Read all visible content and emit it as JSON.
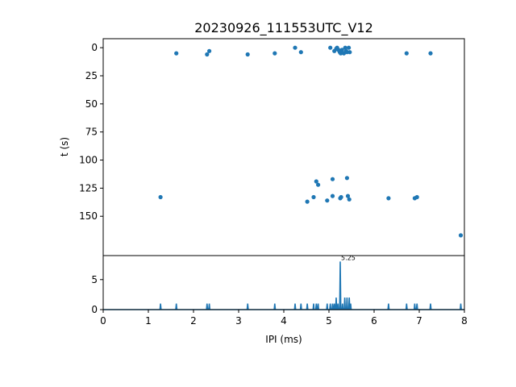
{
  "chart_data": [
    {
      "type": "scatter",
      "title": "20230926_111553UTC_V12",
      "xlabel": "",
      "ylabel": "t (s)",
      "xlim": [
        0,
        8
      ],
      "ylim": [
        185,
        -8
      ],
      "y_inverted": true,
      "yticks": [
        0,
        25,
        50,
        75,
        100,
        125,
        150
      ],
      "color": "#1f77b4",
      "points": [
        {
          "x": 1.62,
          "y": 5
        },
        {
          "x": 2.3,
          "y": 6
        },
        {
          "x": 2.35,
          "y": 3
        },
        {
          "x": 3.2,
          "y": 6
        },
        {
          "x": 3.8,
          "y": 5
        },
        {
          "x": 4.25,
          "y": 0
        },
        {
          "x": 4.38,
          "y": 4
        },
        {
          "x": 5.03,
          "y": 0
        },
        {
          "x": 5.12,
          "y": 3
        },
        {
          "x": 5.16,
          "y": 1
        },
        {
          "x": 5.18,
          "y": 0
        },
        {
          "x": 5.21,
          "y": 2
        },
        {
          "x": 5.24,
          "y": 4
        },
        {
          "x": 5.26,
          "y": 5
        },
        {
          "x": 5.29,
          "y": 2
        },
        {
          "x": 5.33,
          "y": 5
        },
        {
          "x": 5.36,
          "y": 0
        },
        {
          "x": 5.38,
          "y": 3
        },
        {
          "x": 5.4,
          "y": 4
        },
        {
          "x": 5.44,
          "y": 0
        },
        {
          "x": 5.46,
          "y": 4
        },
        {
          "x": 6.72,
          "y": 5
        },
        {
          "x": 7.25,
          "y": 5
        },
        {
          "x": 1.27,
          "y": 133
        },
        {
          "x": 4.52,
          "y": 137
        },
        {
          "x": 4.66,
          "y": 133
        },
        {
          "x": 4.72,
          "y": 119
        },
        {
          "x": 4.76,
          "y": 122
        },
        {
          "x": 4.96,
          "y": 136
        },
        {
          "x": 5.08,
          "y": 117
        },
        {
          "x": 5.08,
          "y": 132
        },
        {
          "x": 5.25,
          "y": 134
        },
        {
          "x": 5.27,
          "y": 133
        },
        {
          "x": 5.4,
          "y": 116
        },
        {
          "x": 5.42,
          "y": 132
        },
        {
          "x": 5.45,
          "y": 135
        },
        {
          "x": 6.32,
          "y": 134
        },
        {
          "x": 6.9,
          "y": 134
        },
        {
          "x": 6.95,
          "y": 133
        },
        {
          "x": 7.92,
          "y": 167
        }
      ]
    },
    {
      "type": "line",
      "title": "",
      "xlabel": "IPI (ms)",
      "ylabel": "",
      "xlim": [
        0,
        8
      ],
      "ylim": [
        0,
        9
      ],
      "xticks": [
        0,
        1,
        2,
        3,
        4,
        5,
        6,
        7,
        8
      ],
      "yticks": [
        0,
        5
      ],
      "color": "#1f77b4",
      "peak_label": "5.25",
      "peak_x": 5.25,
      "peaks": [
        {
          "x": 1.27,
          "y": 1
        },
        {
          "x": 1.62,
          "y": 1
        },
        {
          "x": 2.3,
          "y": 1
        },
        {
          "x": 2.35,
          "y": 1
        },
        {
          "x": 3.2,
          "y": 1
        },
        {
          "x": 3.8,
          "y": 1
        },
        {
          "x": 4.25,
          "y": 1
        },
        {
          "x": 4.38,
          "y": 1
        },
        {
          "x": 4.52,
          "y": 1
        },
        {
          "x": 4.66,
          "y": 1
        },
        {
          "x": 4.72,
          "y": 1
        },
        {
          "x": 4.76,
          "y": 1
        },
        {
          "x": 4.96,
          "y": 1
        },
        {
          "x": 5.03,
          "y": 1
        },
        {
          "x": 5.08,
          "y": 1
        },
        {
          "x": 5.12,
          "y": 1
        },
        {
          "x": 5.16,
          "y": 2
        },
        {
          "x": 5.2,
          "y": 1
        },
        {
          "x": 5.25,
          "y": 8
        },
        {
          "x": 5.3,
          "y": 1
        },
        {
          "x": 5.35,
          "y": 2
        },
        {
          "x": 5.4,
          "y": 2
        },
        {
          "x": 5.45,
          "y": 2
        },
        {
          "x": 5.48,
          "y": 1
        },
        {
          "x": 6.32,
          "y": 1
        },
        {
          "x": 6.72,
          "y": 1
        },
        {
          "x": 6.9,
          "y": 1
        },
        {
          "x": 6.95,
          "y": 1
        },
        {
          "x": 7.25,
          "y": 1
        },
        {
          "x": 7.92,
          "y": 1
        }
      ]
    }
  ]
}
